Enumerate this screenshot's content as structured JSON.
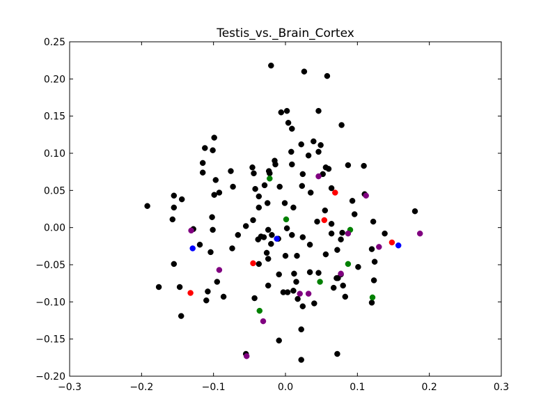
{
  "chart_data": {
    "type": "scatter",
    "title": "Testis_vs._Brain_Cortex",
    "xlabel": "",
    "ylabel": "",
    "xlim": [
      -0.3,
      0.3
    ],
    "ylim": [
      -0.2,
      0.25
    ],
    "xticks": [
      "−0.3",
      "−0.2",
      "−0.1",
      "0.0",
      "0.1",
      "0.2",
      "0.3"
    ],
    "yticks": [
      "−0.20",
      "−0.15",
      "−0.10",
      "−0.05",
      "0.00",
      "0.05",
      "0.10",
      "0.15",
      "0.20",
      "0.25"
    ],
    "xtick_values": [
      -0.3,
      -0.2,
      -0.1,
      0.0,
      0.1,
      0.2,
      0.3
    ],
    "ytick_values": [
      -0.2,
      -0.15,
      -0.1,
      -0.05,
      0.0,
      0.05,
      0.1,
      0.15,
      0.2,
      0.25
    ],
    "grid": false,
    "colors": {
      "black": "#000000",
      "red": "#ff0000",
      "green": "#008000",
      "blue": "#0000ff",
      "purple": "#800080"
    },
    "series": [
      {
        "color": "#000000",
        "points": [
          [
            -0.02,
            0.218
          ],
          [
            0.026,
            0.21
          ],
          [
            0.058,
            0.204
          ],
          [
            0.046,
            0.157
          ],
          [
            0.002,
            0.157
          ],
          [
            -0.006,
            0.155
          ],
          [
            0.078,
            0.138
          ],
          [
            0.004,
            0.141
          ],
          [
            0.009,
            0.133
          ],
          [
            0.039,
            0.116
          ],
          [
            0.049,
            0.111
          ],
          [
            0.022,
            0.112
          ],
          [
            -0.099,
            0.121
          ],
          [
            -0.112,
            0.107
          ],
          [
            -0.101,
            0.104
          ],
          [
            0.008,
            0.102
          ],
          [
            0.032,
            0.097
          ],
          [
            0.046,
            0.102
          ],
          [
            -0.115,
            0.087
          ],
          [
            -0.015,
            0.09
          ],
          [
            -0.014,
            0.085
          ],
          [
            0.009,
            0.085
          ],
          [
            0.087,
            0.084
          ],
          [
            0.109,
            0.083
          ],
          [
            -0.046,
            0.081
          ],
          [
            0.056,
            0.081
          ],
          [
            0.06,
            0.079
          ],
          [
            -0.076,
            0.076
          ],
          [
            -0.115,
            0.074
          ],
          [
            -0.023,
            0.076
          ],
          [
            -0.044,
            0.073
          ],
          [
            -0.022,
            0.073
          ],
          [
            0.024,
            0.072
          ],
          [
            0.052,
            0.072
          ],
          [
            -0.097,
            0.064
          ],
          [
            -0.029,
            0.057
          ],
          [
            0.023,
            0.056
          ],
          [
            -0.008,
            0.055
          ],
          [
            -0.073,
            0.055
          ],
          [
            0.064,
            0.053
          ],
          [
            -0.042,
            0.052
          ],
          [
            -0.092,
            0.047
          ],
          [
            -0.099,
            0.044
          ],
          [
            0.035,
            0.047
          ],
          [
            -0.155,
            0.043
          ],
          [
            -0.037,
            0.042
          ],
          [
            -0.144,
            0.038
          ],
          [
            0.11,
            0.045
          ],
          [
            0.093,
            0.036
          ],
          [
            -0.025,
            0.033
          ],
          [
            -0.001,
            0.033
          ],
          [
            -0.037,
            0.027
          ],
          [
            0.011,
            0.027
          ],
          [
            -0.192,
            0.029
          ],
          [
            -0.155,
            0.027
          ],
          [
            0.055,
            0.023
          ],
          [
            0.18,
            0.022
          ],
          [
            0.096,
            0.018
          ],
          [
            -0.102,
            0.014
          ],
          [
            -0.157,
            0.011
          ],
          [
            -0.045,
            0.01
          ],
          [
            0.044,
            0.008
          ],
          [
            0.122,
            0.008
          ],
          [
            0.064,
            0.005
          ],
          [
            -0.055,
            0.002
          ],
          [
            -0.101,
            -0.003
          ],
          [
            -0.128,
            -0.002
          ],
          [
            -0.024,
            -0.003
          ],
          [
            0.002,
            -0.001
          ],
          [
            -0.034,
            -0.012
          ],
          [
            -0.03,
            -0.013
          ],
          [
            -0.019,
            -0.01
          ],
          [
            0.064,
            -0.008
          ],
          [
            0.079,
            -0.007
          ],
          [
            -0.066,
            -0.01
          ],
          [
            -0.038,
            -0.016
          ],
          [
            -0.01,
            -0.015
          ],
          [
            0.009,
            -0.01
          ],
          [
            0.138,
            -0.008
          ],
          [
            0.024,
            -0.013
          ],
          [
            0.077,
            -0.016
          ],
          [
            -0.119,
            -0.023
          ],
          [
            -0.02,
            -0.022
          ],
          [
            0.034,
            -0.023
          ],
          [
            0.12,
            -0.029
          ],
          [
            -0.074,
            -0.028
          ],
          [
            0.072,
            -0.03
          ],
          [
            -0.104,
            -0.033
          ],
          [
            -0.026,
            -0.034
          ],
          [
            0.0,
            -0.038
          ],
          [
            0.016,
            -0.038
          ],
          [
            0.056,
            -0.036
          ],
          [
            -0.024,
            -0.042
          ],
          [
            -0.155,
            -0.049
          ],
          [
            -0.037,
            -0.049
          ],
          [
            0.124,
            -0.046
          ],
          [
            0.101,
            -0.053
          ],
          [
            -0.009,
            -0.063
          ],
          [
            0.012,
            -0.062
          ],
          [
            0.034,
            -0.06
          ],
          [
            0.046,
            -0.061
          ],
          [
            0.077,
            -0.063
          ],
          [
            0.073,
            -0.068
          ],
          [
            0.071,
            -0.068
          ],
          [
            0.123,
            -0.071
          ],
          [
            -0.095,
            -0.073
          ],
          [
            0.015,
            -0.073
          ],
          [
            -0.024,
            -0.078
          ],
          [
            -0.176,
            -0.08
          ],
          [
            -0.147,
            -0.08
          ],
          [
            0.067,
            -0.081
          ],
          [
            0.08,
            -0.078
          ],
          [
            -0.108,
            -0.086
          ],
          [
            -0.003,
            -0.087
          ],
          [
            0.003,
            -0.087
          ],
          [
            0.011,
            -0.085
          ],
          [
            -0.086,
            -0.093
          ],
          [
            0.083,
            -0.093
          ],
          [
            -0.043,
            -0.095
          ],
          [
            0.017,
            -0.096
          ],
          [
            -0.11,
            -0.098
          ],
          [
            0.12,
            -0.101
          ],
          [
            0.04,
            -0.102
          ],
          [
            0.024,
            -0.106
          ],
          [
            -0.145,
            -0.119
          ],
          [
            0.022,
            -0.137
          ],
          [
            -0.009,
            -0.152
          ],
          [
            -0.055,
            -0.17
          ],
          [
            0.072,
            -0.17
          ],
          [
            0.022,
            -0.178
          ]
        ]
      },
      {
        "color": "#ff0000",
        "points": [
          [
            0.069,
            0.047
          ],
          [
            0.054,
            0.01
          ],
          [
            0.148,
            -0.02
          ],
          [
            -0.045,
            -0.048
          ],
          [
            -0.132,
            -0.088
          ]
        ]
      },
      {
        "color": "#008000",
        "points": [
          [
            -0.022,
            0.066
          ],
          [
            0.001,
            0.011
          ],
          [
            0.09,
            -0.003
          ],
          [
            0.087,
            -0.049
          ],
          [
            0.048,
            -0.073
          ],
          [
            0.121,
            -0.094
          ],
          [
            -0.036,
            -0.112
          ]
        ]
      },
      {
        "color": "#0000ff",
        "points": [
          [
            -0.129,
            -0.028
          ],
          [
            -0.012,
            -0.015
          ],
          [
            0.157,
            -0.024
          ]
        ]
      },
      {
        "color": "#800080",
        "points": [
          [
            0.046,
            0.069
          ],
          [
            0.112,
            0.043
          ],
          [
            -0.131,
            -0.004
          ],
          [
            0.187,
            -0.008
          ],
          [
            0.087,
            -0.008
          ],
          [
            0.13,
            -0.026
          ],
          [
            -0.092,
            -0.057
          ],
          [
            0.077,
            -0.062
          ],
          [
            0.02,
            -0.089
          ],
          [
            0.032,
            -0.089
          ],
          [
            -0.031,
            -0.126
          ],
          [
            -0.054,
            -0.173
          ]
        ]
      }
    ]
  }
}
